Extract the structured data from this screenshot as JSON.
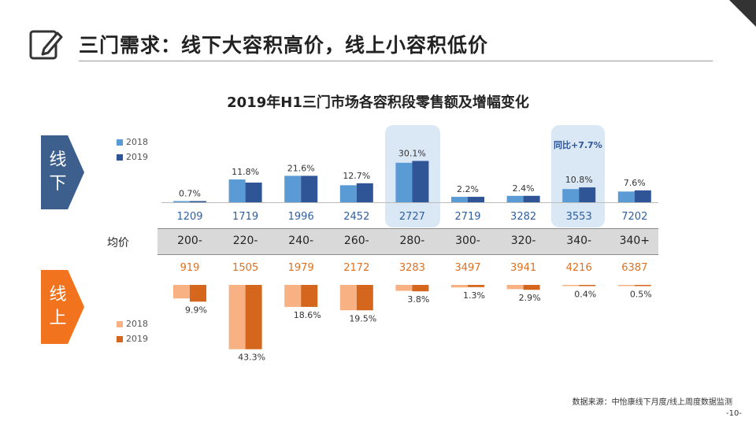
{
  "header": {
    "title": "三门需求：线下大容积高价，线上小容积低价",
    "subtitle": "2019年H1三门市场各容积段零售额及增幅变化"
  },
  "tags": {
    "offline": [
      "线",
      "下"
    ],
    "online": [
      "线",
      "上"
    ]
  },
  "band_label": "均价",
  "annotation": "同比+7.7%",
  "source": "数据来源：中怡康线下月度/线上周度数据监测",
  "page_number": "-10-",
  "colors": {
    "offline_2018": "#5b9bd5",
    "offline_2019": "#2f5597",
    "online_2018": "#f8b183",
    "online_2019": "#d5661d",
    "highlight": "#d4e3f3"
  },
  "chart_data": [
    {
      "type": "bar",
      "categories": [
        "200-",
        "220-",
        "240-",
        "260-",
        "280-",
        "300-",
        "320-",
        "340-",
        "340+"
      ],
      "legend": [
        "2018",
        "2019"
      ],
      "growth_labels": [
        "0.7%",
        "11.8%",
        "21.6%",
        "12.7%",
        "30.1%",
        "2.2%",
        "2.4%",
        "10.8%",
        "7.6%"
      ],
      "avg_price": [
        1209,
        1719,
        1996,
        2452,
        2727,
        2719,
        3282,
        3553,
        7202
      ],
      "series": [
        {
          "name": "2018",
          "values": [
            0.6,
            13.8,
            16.0,
            10.3,
            23.9,
            3.3,
            3.9,
            8.0,
            6.5
          ]
        },
        {
          "name": "2019",
          "values": [
            0.7,
            11.9,
            16.0,
            11.5,
            25.0,
            3.3,
            3.9,
            9.0,
            7.2
          ]
        }
      ],
      "highlighted": [
        "280-",
        "340-"
      ],
      "legend_position": "top-left"
    },
    {
      "type": "bar",
      "categories": [
        "200-",
        "220-",
        "240-",
        "260-",
        "280-",
        "300-",
        "320-",
        "340-",
        "340+"
      ],
      "legend": [
        "2018",
        "2019"
      ],
      "growth_labels": [
        "9.9%",
        "43.3%",
        "18.6%",
        "19.5%",
        "3.8%",
        "1.3%",
        "2.9%",
        "0.4%",
        "0.5%"
      ],
      "avg_price": [
        919,
        1505,
        1979,
        2172,
        3283,
        3497,
        3941,
        4216,
        6387
      ],
      "series": [
        {
          "name": "2018",
          "values": [
            8.0,
            38.0,
            13.0,
            15.0,
            3.5,
            1.5,
            2.5,
            0.5,
            0.5
          ]
        },
        {
          "name": "2019",
          "values": [
            9.9,
            38.0,
            13.0,
            15.0,
            3.8,
            1.3,
            2.9,
            0.4,
            0.5
          ]
        }
      ],
      "highlighted": [],
      "legend_position": "bottom-left"
    }
  ]
}
